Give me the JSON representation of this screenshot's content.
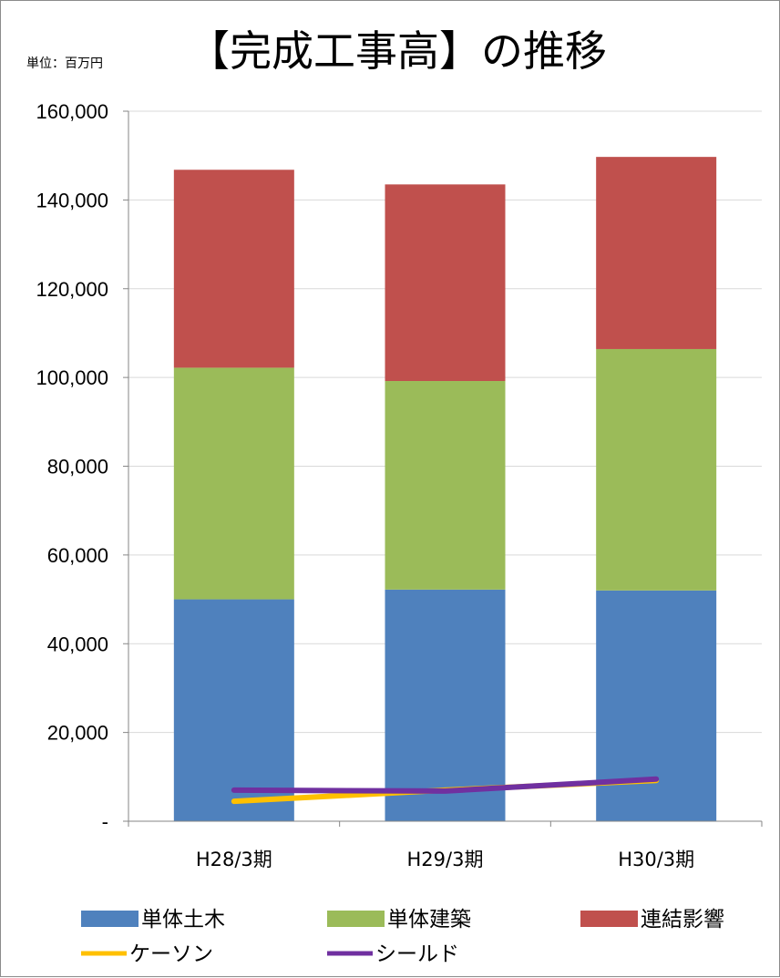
{
  "chart_data": {
    "type": "bar",
    "stacked": true,
    "title": "【完成工事高】の推移",
    "unit_label": "単位：百万円",
    "categories": [
      "H28/3期",
      "H29/3期",
      "H30/3期"
    ],
    "ylim": [
      0,
      160000
    ],
    "yticks": [
      0,
      20000,
      40000,
      60000,
      80000,
      100000,
      120000,
      140000,
      160000
    ],
    "ytick_labels": [
      "-",
      "20,000",
      "40,000",
      "60,000",
      "80,000",
      "100,000",
      "120,000",
      "140,000",
      "160,000"
    ],
    "grid": true,
    "legend_position": "bottom",
    "series": [
      {
        "name": "単体土木",
        "type": "bar",
        "color": "#4f81bd",
        "values": [
          50000,
          52200,
          52000
        ]
      },
      {
        "name": "単体建築",
        "type": "bar",
        "color": "#9bbb59",
        "values": [
          52200,
          47000,
          54400
        ]
      },
      {
        "name": "連結影響",
        "type": "bar",
        "color": "#c0504d",
        "values": [
          44600,
          44300,
          43300
        ]
      },
      {
        "name": "ケーソン",
        "type": "line",
        "color": "#ffc000",
        "values": [
          4500,
          7000,
          9200
        ]
      },
      {
        "name": "シールド",
        "type": "line",
        "color": "#7030a0",
        "values": [
          7000,
          6800,
          9500
        ]
      }
    ]
  }
}
